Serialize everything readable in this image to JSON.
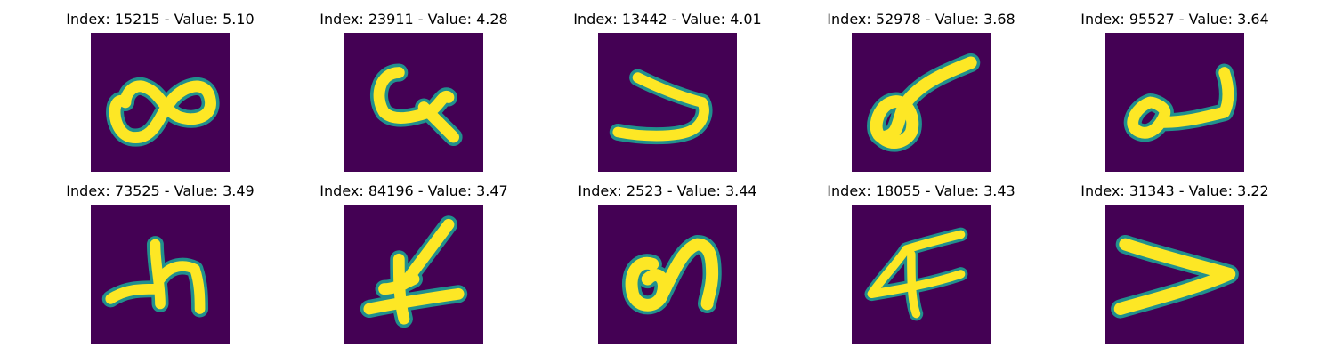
{
  "colors": {
    "background": "#440154",
    "stroke_outer": "#21908d",
    "stroke_mid": "#5ec962",
    "stroke_core": "#fde725"
  },
  "panels": [
    {
      "title": "Index: 15215 - Value: 5.10",
      "glyph": "eight-shape"
    },
    {
      "title": "Index: 23911 - Value: 4.28",
      "glyph": "curl-shape"
    },
    {
      "title": "Index: 13442 - Value: 4.01",
      "glyph": "hook-shape"
    },
    {
      "title": "Index: 52978 - Value: 3.68",
      "glyph": "loop-slash-shape"
    },
    {
      "title": "Index: 95527 - Value: 3.64",
      "glyph": "wave-loop-shape"
    },
    {
      "title": "Index: 73525 - Value: 3.49",
      "glyph": "h-shape"
    },
    {
      "title": "Index: 84196 - Value: 3.47",
      "glyph": "cross-stroke-shape"
    },
    {
      "title": "Index: 2523 - Value: 3.44",
      "glyph": "loop-arch-shape"
    },
    {
      "title": "Index: 18055 - Value: 3.43",
      "glyph": "triangle-cross-shape"
    },
    {
      "title": "Index: 31343 - Value: 3.22",
      "glyph": "v-shape"
    }
  ]
}
